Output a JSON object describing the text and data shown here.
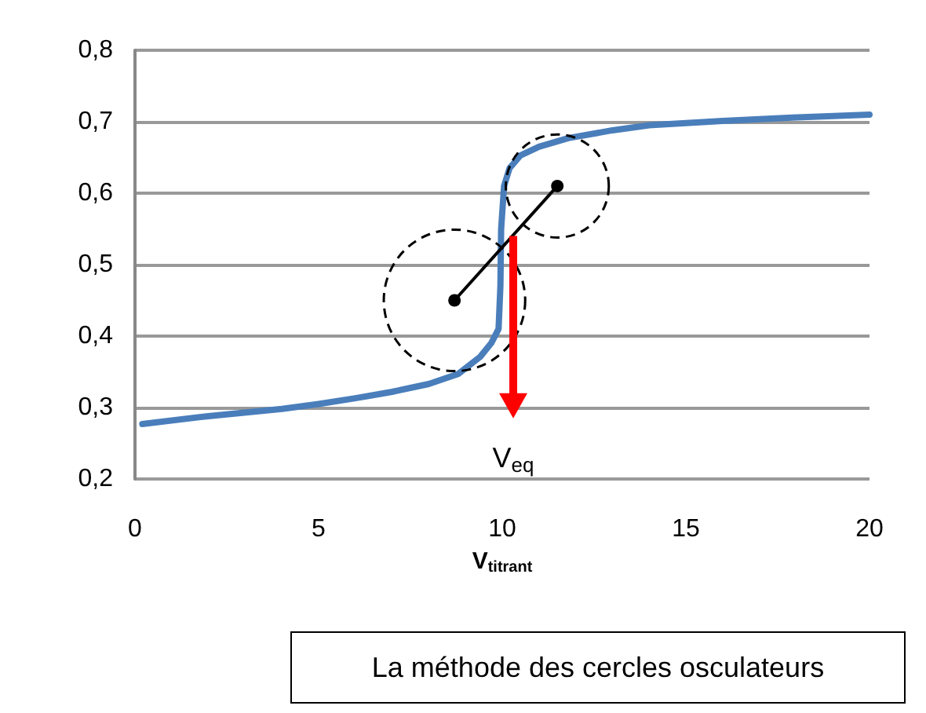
{
  "chart_data": {
    "type": "line",
    "xlabel": "V$_{titrant}$",
    "x": [
      0.2,
      2,
      4,
      5,
      6,
      7,
      8,
      8.8,
      9.4,
      9.7,
      9.9,
      9.95,
      9.97,
      10.05,
      10.2,
      10.5,
      11,
      11.8,
      13,
      14,
      16,
      18,
      20
    ],
    "series": [
      {
        "color": "#4a7ebb",
        "values": [
          0.277,
          0.288,
          0.298,
          0.305,
          0.313,
          0.322,
          0.333,
          0.347,
          0.371,
          0.39,
          0.41,
          0.47,
          0.55,
          0.61,
          0.635,
          0.653,
          0.665,
          0.677,
          0.688,
          0.695,
          0.701,
          0.706,
          0.71
        ]
      }
    ],
    "xlim": [
      0,
      20
    ],
    "xticks": [
      0,
      5,
      10,
      15,
      20
    ],
    "ylim": [
      0.2,
      0.8
    ],
    "yticks": [
      {
        "value": 0.2,
        "label": "0,2"
      },
      {
        "value": 0.3,
        "label": "0,3"
      },
      {
        "value": 0.4,
        "label": "0,4"
      },
      {
        "value": 0.5,
        "label": "0,5"
      },
      {
        "value": 0.6,
        "label": "0,6"
      },
      {
        "value": 0.7,
        "label": "0,7"
      },
      {
        "value": 0.8,
        "label": "0,8"
      }
    ],
    "grid": "y",
    "marker": "none",
    "line_style": "solid",
    "annotations": [
      "V$_{eq}$",
      "La méthode des cercles osculateurs"
    ]
  }
}
